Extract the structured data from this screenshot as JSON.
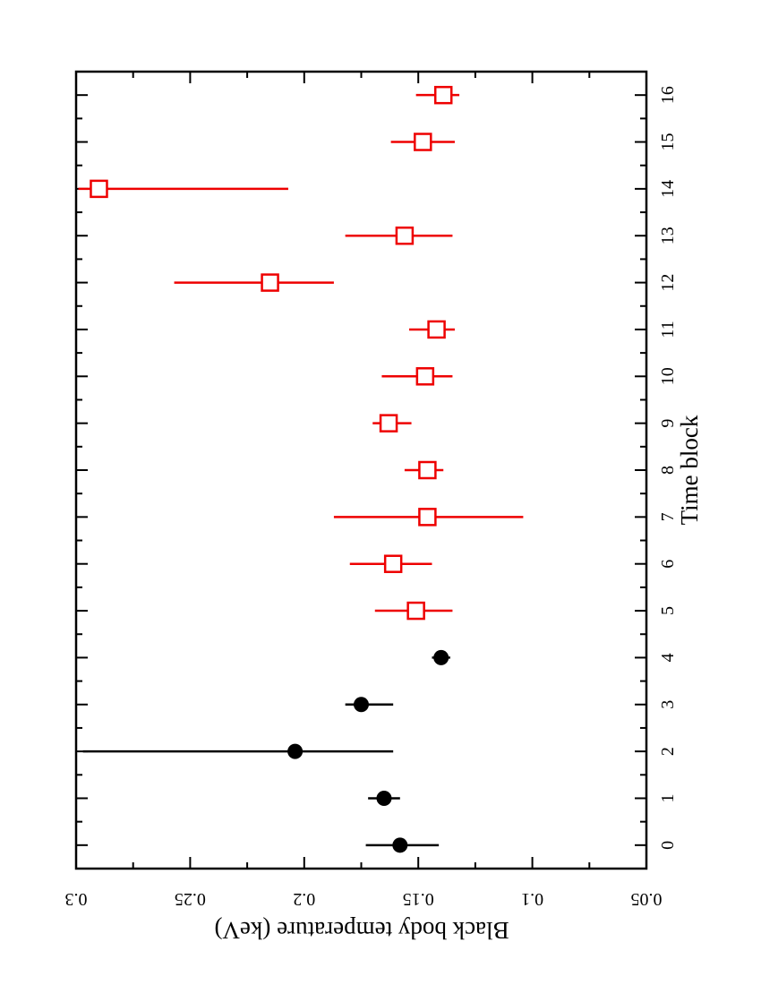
{
  "chart_data": {
    "type": "scatter",
    "orientation": "rotated-90-clockwise",
    "title": "",
    "xlabel": "Time block",
    "ylabel": "Black body temperature (keV)",
    "xlim": [
      -0.5,
      16.5
    ],
    "ylim": [
      0.3,
      0.05
    ],
    "x_ticks": [
      "0",
      "1",
      "2",
      "3",
      "4",
      "5",
      "6",
      "7",
      "8",
      "9",
      "10",
      "11",
      "12",
      "13",
      "14",
      "15",
      "16"
    ],
    "y_ticks": [
      "0.3",
      "0.25",
      "0.2",
      "0.15",
      "0.1",
      "0.05"
    ],
    "y_tick_values": [
      0.3,
      0.25,
      0.2,
      0.15,
      0.1,
      0.05
    ],
    "grid": false,
    "legend": "none",
    "series": [
      {
        "marker": "filled-circle",
        "color": "#000000",
        "points": [
          {
            "x": 0,
            "y": 0.158,
            "err_low": 0.141,
            "err_high": 0.173
          },
          {
            "x": 1,
            "y": 0.165,
            "err_low": 0.158,
            "err_high": 0.172
          },
          {
            "x": 2,
            "y": 0.204,
            "err_low": 0.161,
            "err_high": 0.297
          },
          {
            "x": 3,
            "y": 0.175,
            "err_low": 0.161,
            "err_high": 0.182
          },
          {
            "x": 4,
            "y": 0.14,
            "err_low": 0.136,
            "err_high": 0.144
          }
        ]
      },
      {
        "marker": "open-square",
        "color": "#ee0000",
        "points": [
          {
            "x": 5,
            "y": 0.151,
            "err_low": 0.135,
            "err_high": 0.169
          },
          {
            "x": 6,
            "y": 0.161,
            "err_low": 0.144,
            "err_high": 0.18
          },
          {
            "x": 7,
            "y": 0.146,
            "err_low": 0.104,
            "err_high": 0.187
          },
          {
            "x": 8,
            "y": 0.146,
            "err_low": 0.139,
            "err_high": 0.156
          },
          {
            "x": 9,
            "y": 0.163,
            "err_low": 0.153,
            "err_high": 0.17
          },
          {
            "x": 10,
            "y": 0.147,
            "err_low": 0.135,
            "err_high": 0.166
          },
          {
            "x": 11,
            "y": 0.142,
            "err_low": 0.134,
            "err_high": 0.154
          },
          {
            "x": 12,
            "y": 0.215,
            "err_low": 0.187,
            "err_high": 0.257
          },
          {
            "x": 13,
            "y": 0.156,
            "err_low": 0.135,
            "err_high": 0.182
          },
          {
            "x": 14,
            "y": 0.29,
            "err_low": 0.207,
            "err_high": 0.299
          },
          {
            "x": 15,
            "y": 0.148,
            "err_low": 0.134,
            "err_high": 0.162
          },
          {
            "x": 16,
            "y": 0.139,
            "err_low": 0.132,
            "err_high": 0.151
          }
        ]
      }
    ]
  }
}
